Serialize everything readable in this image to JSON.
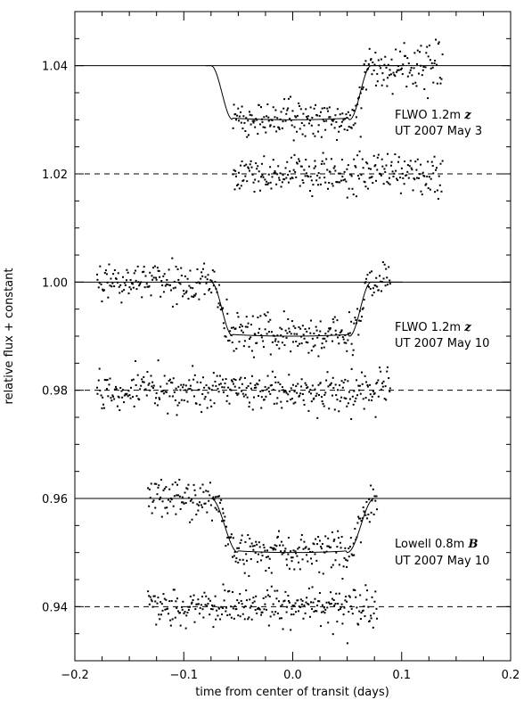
{
  "chart_data": {
    "type": "scatter",
    "xlabel": "time from center of transit (days)",
    "ylabel": "relative flux + constant",
    "xlim": [
      -0.2,
      0.2
    ],
    "ylim": [
      0.93,
      1.05
    ],
    "x_ticks": [
      -0.2,
      -0.1,
      0.0,
      0.1,
      0.2
    ],
    "x_tick_labels": [
      "−0.2",
      "−0.1",
      "0.0",
      "0.1",
      "0.2"
    ],
    "y_ticks": [
      0.94,
      0.96,
      0.98,
      1.0,
      1.02,
      1.04
    ],
    "y_tick_labels": [
      "0.94",
      "0.96",
      "0.98",
      "1.00",
      "1.02",
      "1.04"
    ],
    "grid": false,
    "panels": [
      {
        "instrument": "FLWO 1.2m",
        "band": "z",
        "date": "UT 2007 May 3",
        "baseline": 1.04,
        "residual_baseline": 1.02,
        "x_range": [
          -0.055,
          0.138
        ],
        "depth": 0.01,
        "ingress_start": -0.075,
        "ingress_end": -0.055,
        "egress_start": 0.052,
        "egress_end": 0.072,
        "scatter": 0.0018
      },
      {
        "instrument": "FLWO 1.2m",
        "band": "z",
        "date": "UT 2007 May 10",
        "baseline": 1.0,
        "residual_baseline": 0.98,
        "x_range": [
          -0.18,
          0.09
        ],
        "depth": 0.01,
        "ingress_start": -0.075,
        "ingress_end": -0.055,
        "egress_start": 0.052,
        "egress_end": 0.072,
        "scatter": 0.0018
      },
      {
        "instrument": "Lowell 0.8m",
        "band": "B",
        "date": "UT 2007 May 10",
        "baseline": 0.96,
        "residual_baseline": 0.94,
        "x_range": [
          -0.133,
          0.078
        ],
        "depth": 0.01,
        "ingress_start": -0.075,
        "ingress_end": -0.05,
        "egress_start": 0.05,
        "egress_end": 0.075,
        "scatter": 0.0018
      }
    ]
  }
}
